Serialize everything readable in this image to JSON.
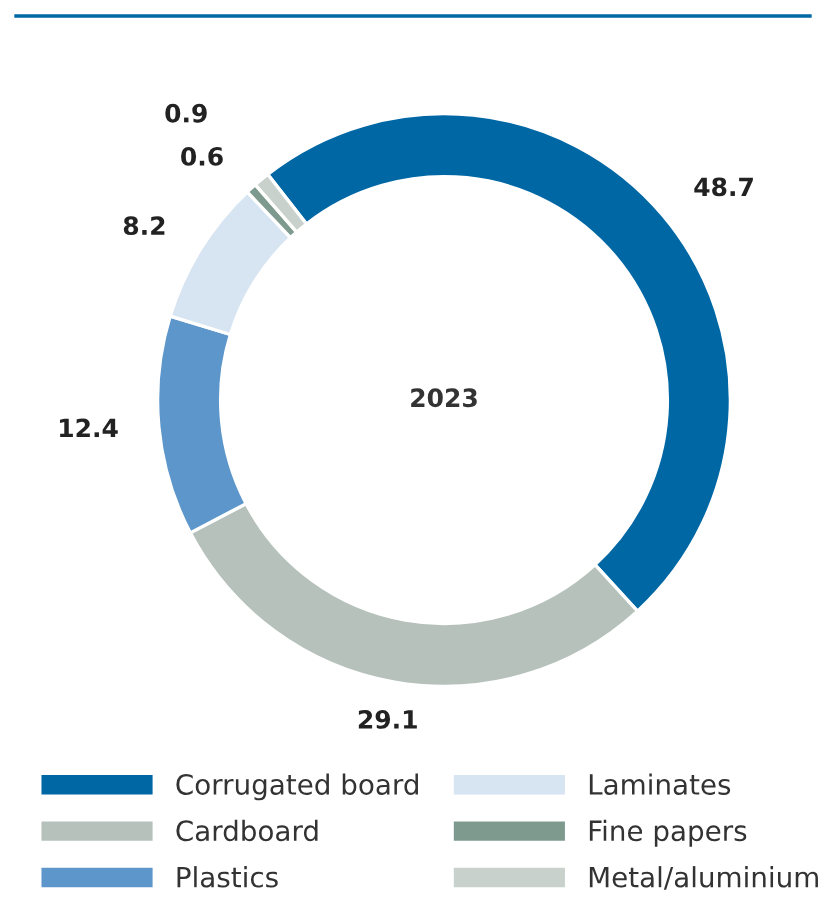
{
  "chart_data": {
    "type": "donut",
    "title": "2023",
    "categories": [
      "Corrugated board",
      "Cardboard",
      "Plastics",
      "Laminates",
      "Fine papers",
      "Metal/aluminium"
    ],
    "values": [
      48.7,
      29.1,
      12.4,
      8.2,
      0.6,
      0.9
    ],
    "colors": [
      "#0067a5",
      "#b6c1bb",
      "#5c96ca",
      "#d7e4f1",
      "#7e9a8e",
      "#c9d1cd"
    ],
    "data_labels": true,
    "legend": "bottom"
  }
}
